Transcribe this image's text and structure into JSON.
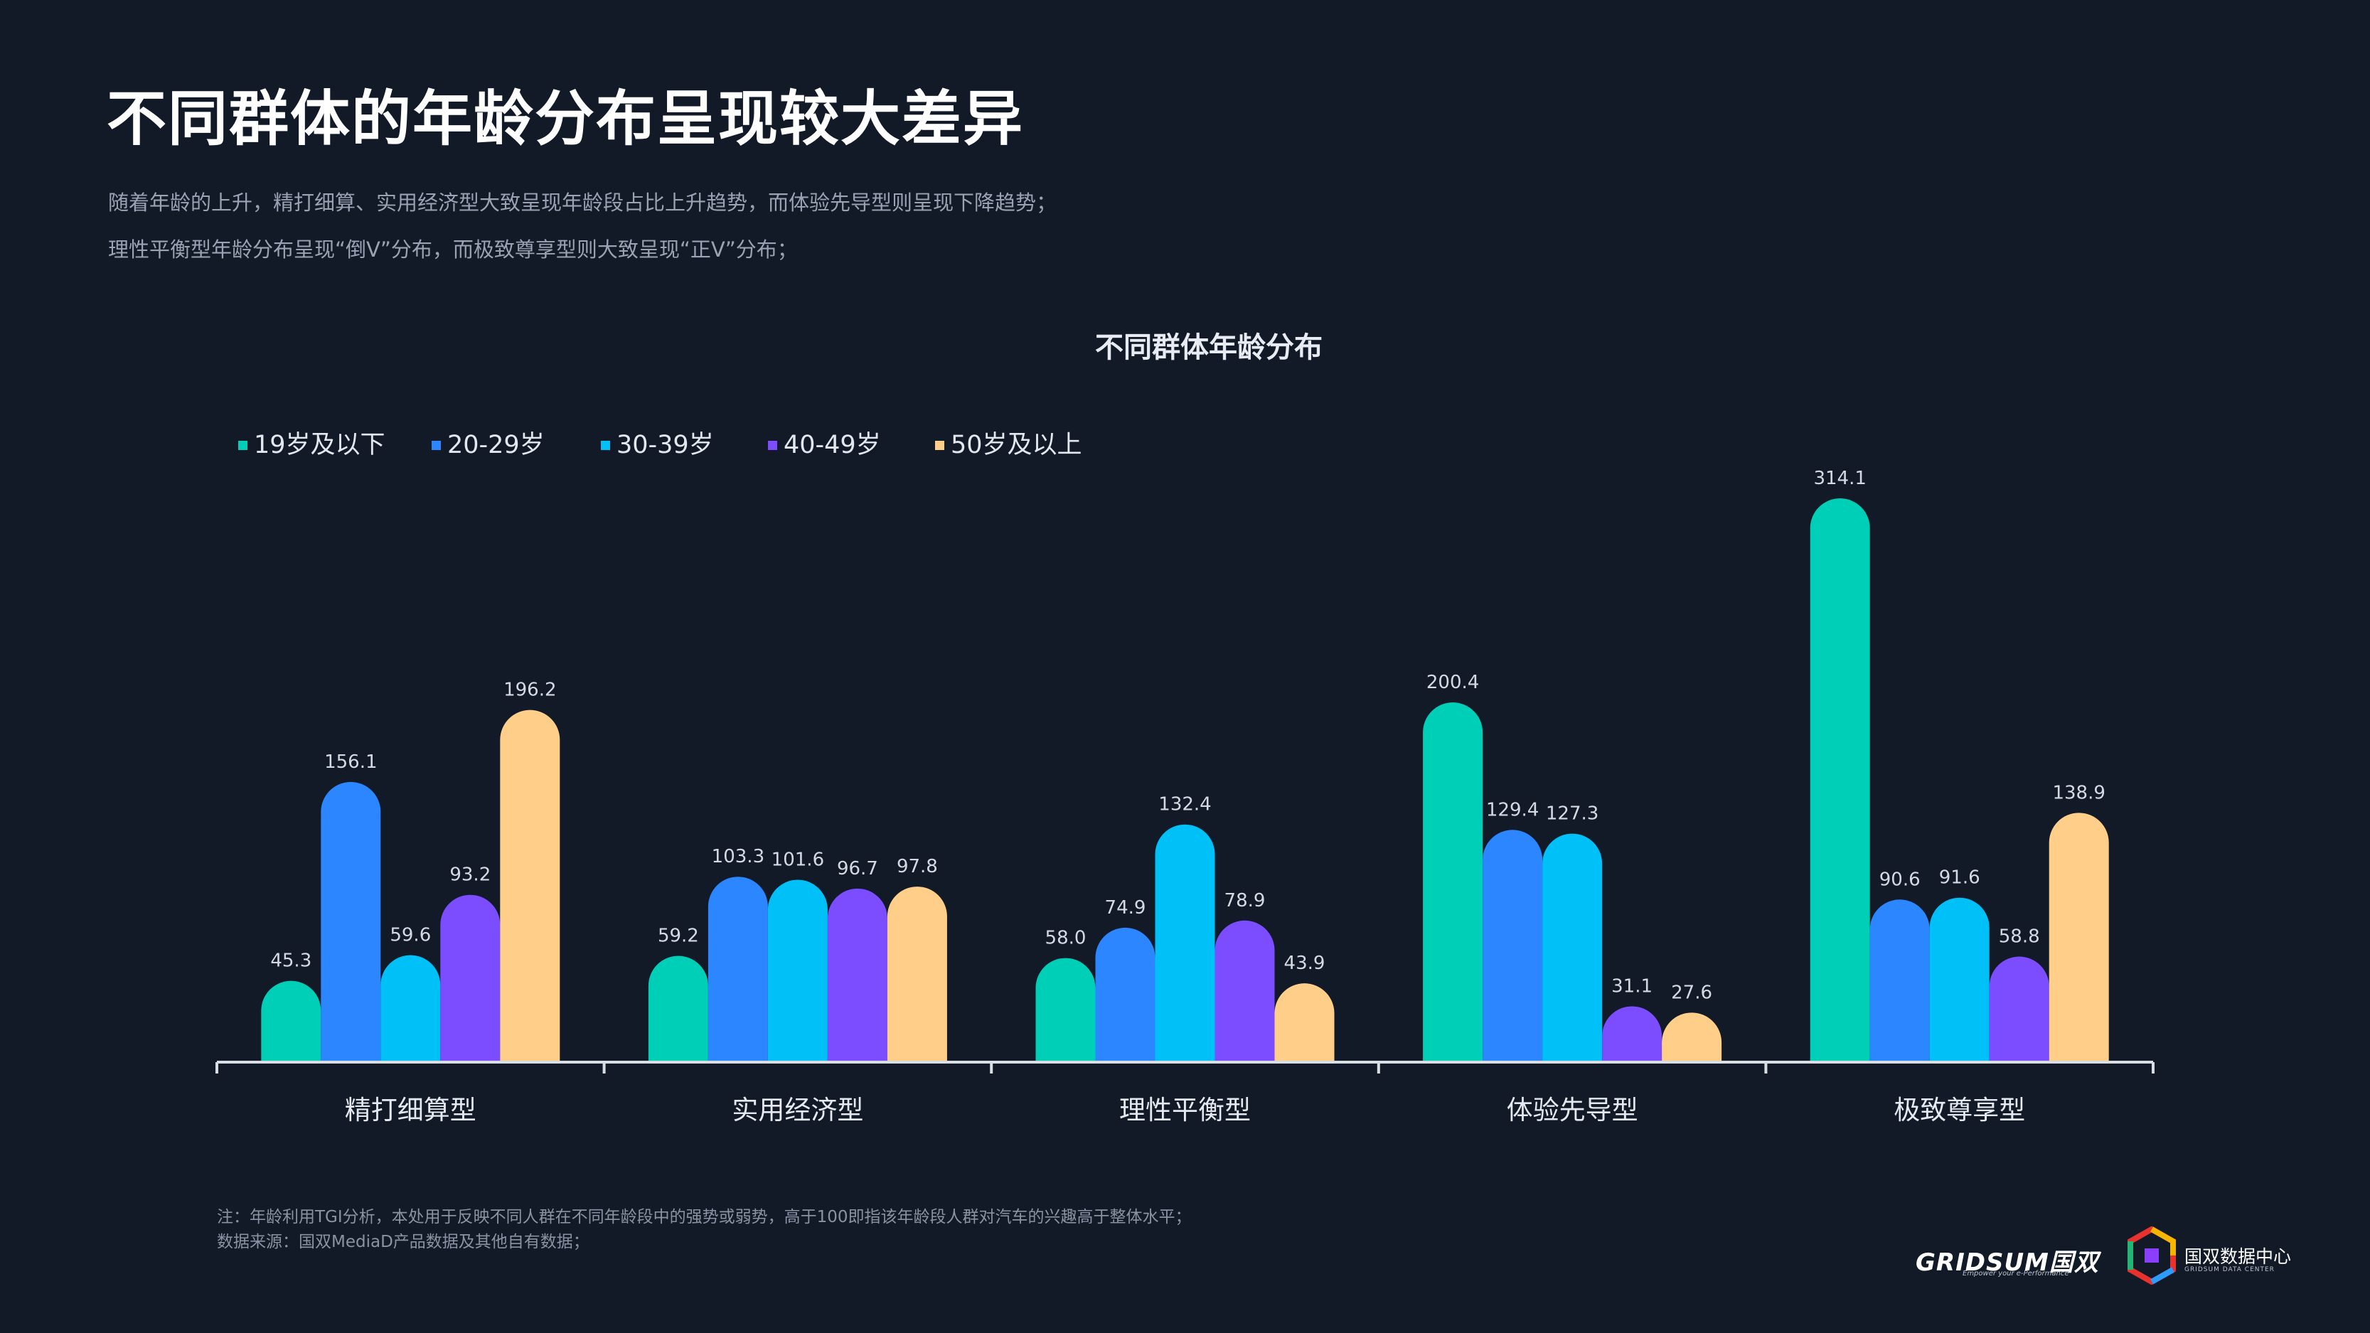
{
  "title": "不同群体的年龄分布呈现较大差异",
  "subtitle_lines": [
    "随着年龄的上升，精打细算、实用经济型大致呈现年龄段占比上升趋势，而体验先导型则呈现下降趋势；",
    "理性平衡型年龄分布呈现“倒V”分布，而极致尊享型则大致呈现“正V”分布；"
  ],
  "chart_data": {
    "type": "bar",
    "title": "不同群体年龄分布",
    "categories": [
      "精打细算型",
      "实用经济型",
      "理性平衡型",
      "体验先导型",
      "极致尊享型"
    ],
    "series": [
      {
        "name": "19岁及以下",
        "color": "#00cfb8",
        "values": [
          45.3,
          59.2,
          58.0,
          200.4,
          314.1
        ]
      },
      {
        "name": "20-29岁",
        "color": "#2b86ff",
        "values": [
          156.1,
          103.3,
          74.9,
          129.4,
          90.6
        ]
      },
      {
        "name": "30-39岁",
        "color": "#00c1f7",
        "values": [
          59.6,
          101.6,
          132.4,
          127.3,
          91.6
        ]
      },
      {
        "name": "40-49岁",
        "color": "#7b4dff",
        "values": [
          93.2,
          96.7,
          78.9,
          31.1,
          58.8
        ]
      },
      {
        "name": "50岁及以上",
        "color": "#ffcf8a",
        "values": [
          196.2,
          97.8,
          43.9,
          27.6,
          138.9
        ]
      }
    ],
    "ylim": [
      0,
      330
    ],
    "legend": "top-left",
    "grid": false
  },
  "notes": [
    "注：年龄利用TGI分析，本处用于反映不同人群在不同年龄段中的强势或弱势，高于100即指该年龄段人群对汽车的兴趣高于整体水平；",
    "数据来源：国双MediaD产品数据及其他自有数据；"
  ],
  "logos": {
    "gridsum": "GRIDSUM国双",
    "gridsum_tagline": "Empower your e-Performance",
    "data_center": "国双数据中心",
    "data_center_en": "GRIDSUM DATA CENTER"
  }
}
